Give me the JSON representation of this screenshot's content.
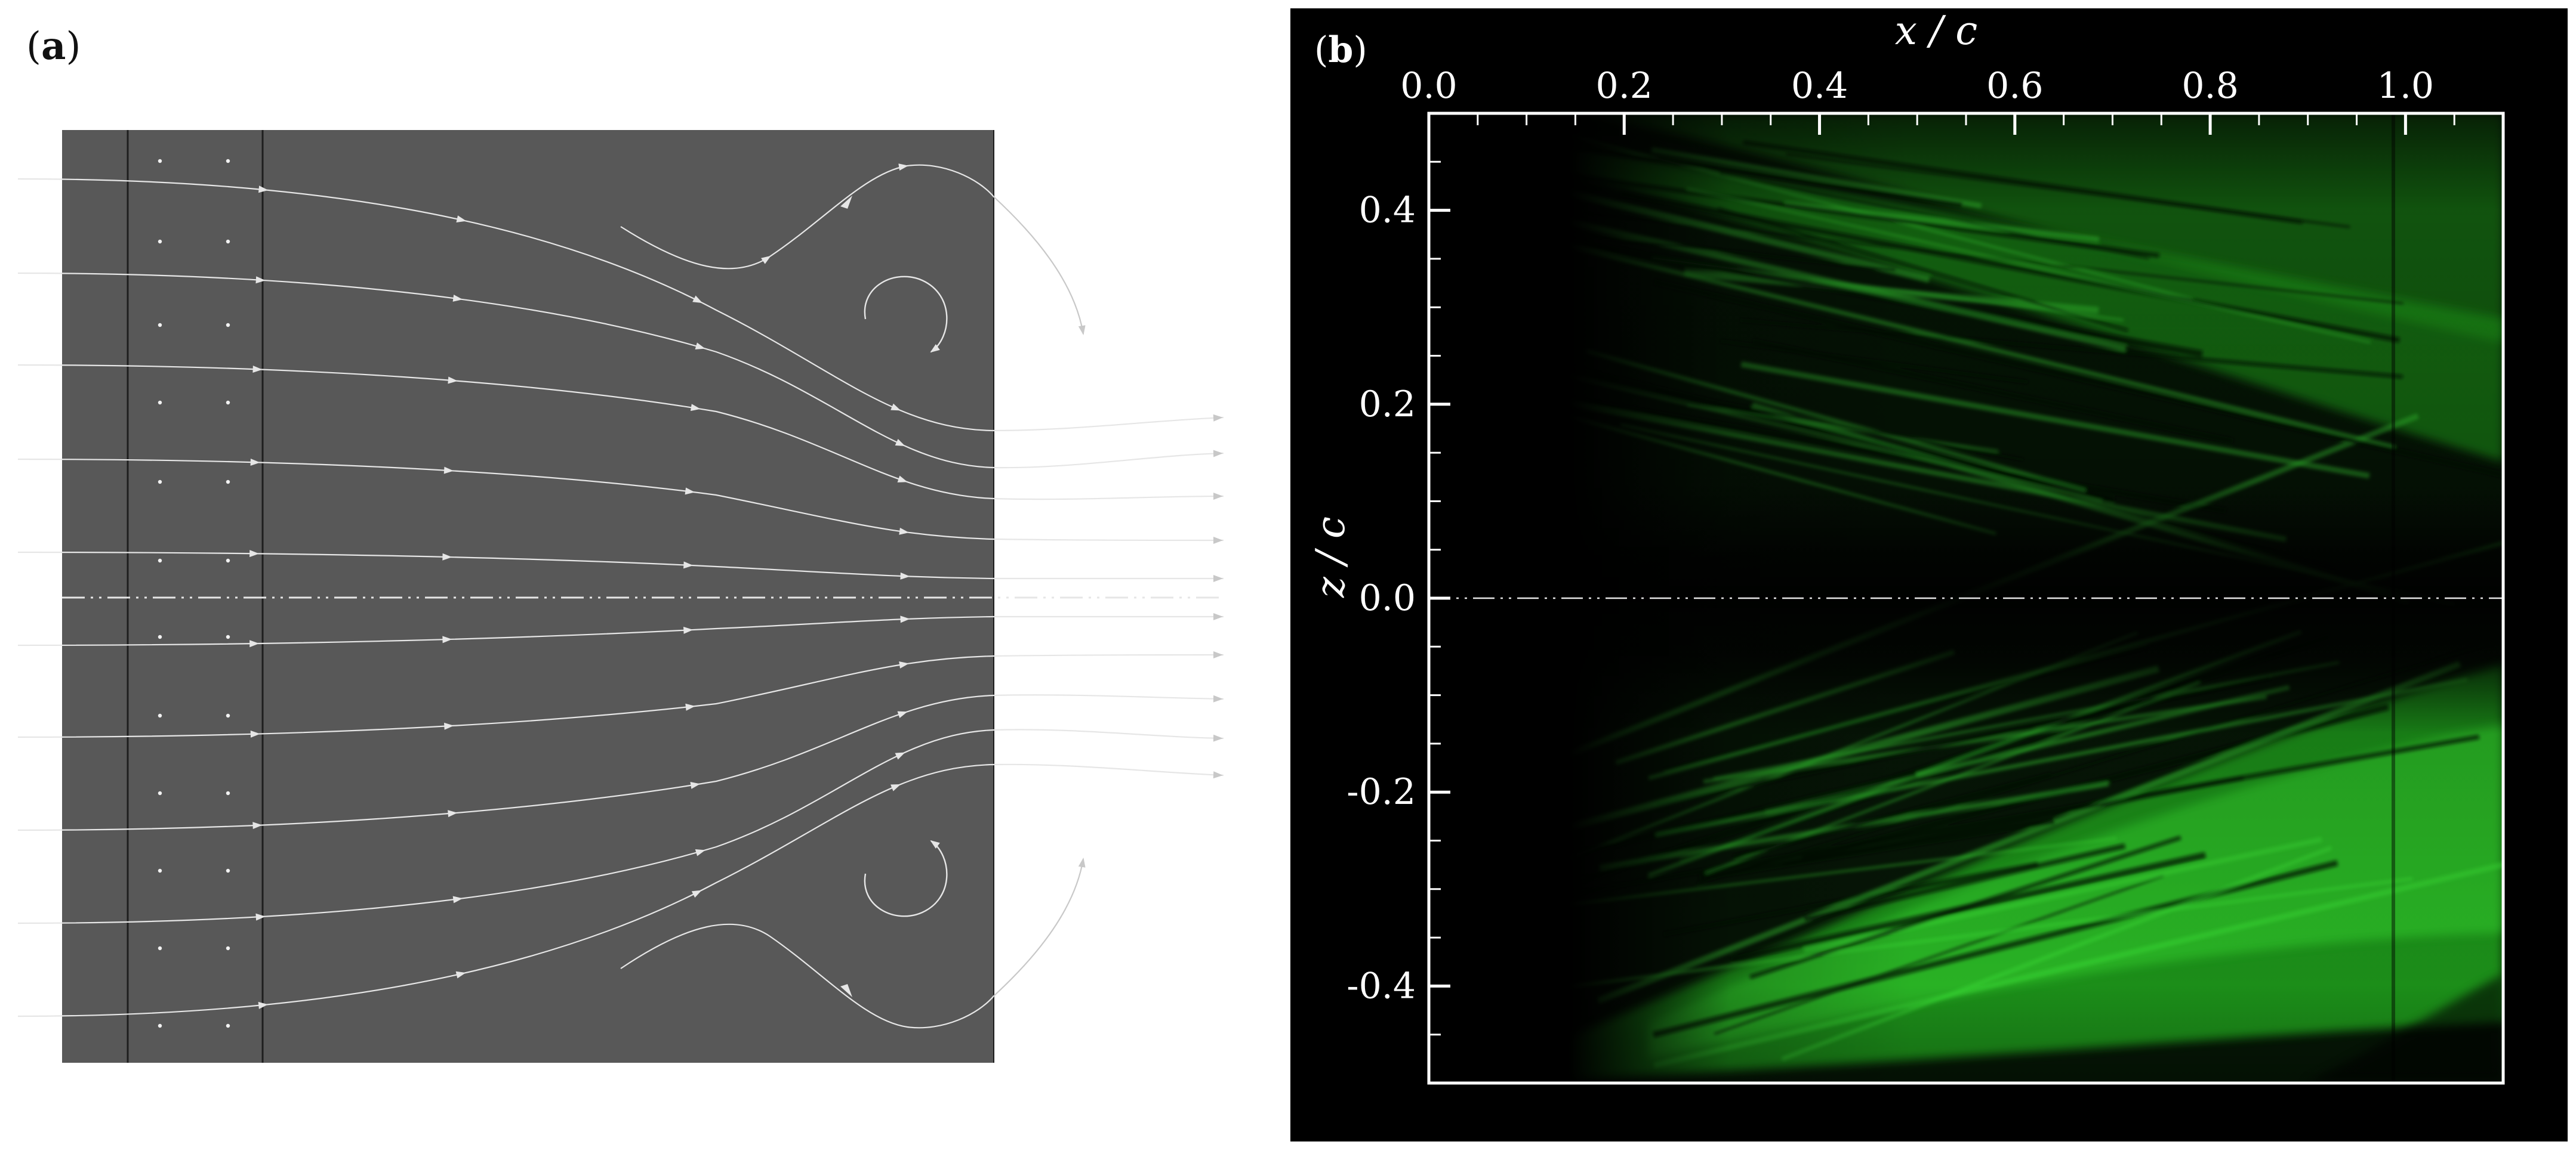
{
  "panel_a": {
    "label_open": "(",
    "label_letter": "a",
    "label_close": ")",
    "colors": {
      "background": "#585858",
      "streamline": "#e6e6e6",
      "outside_streamline": "#c8c8c8",
      "divider": "#1e1e1e"
    }
  },
  "panel_b": {
    "label_open": "(",
    "label_letter": "b",
    "label_close": ")",
    "x_axis_title": "x / c",
    "z_axis_title": "z / c",
    "x_ticks": [
      "0.0",
      "0.2",
      "0.4",
      "0.6",
      "0.8",
      "1.0"
    ],
    "z_ticks": [
      "0.4",
      "0.2",
      "0.0",
      "-0.2",
      "-0.4"
    ],
    "colors": {
      "background": "#000000",
      "flow": "#22d11e",
      "frame": "#ffffff"
    }
  },
  "chart_data": {
    "type": "heatmap",
    "xlabel": "x / c",
    "ylabel": "z / c",
    "xlim": [
      0.0,
      1.1
    ],
    "ylim": [
      -0.5,
      0.5
    ],
    "x_ticks": [
      0.0,
      0.2,
      0.4,
      0.6,
      0.8,
      1.0
    ],
    "y_ticks": [
      0.4,
      0.2,
      0.0,
      -0.2,
      -0.4
    ],
    "grid": false
  }
}
